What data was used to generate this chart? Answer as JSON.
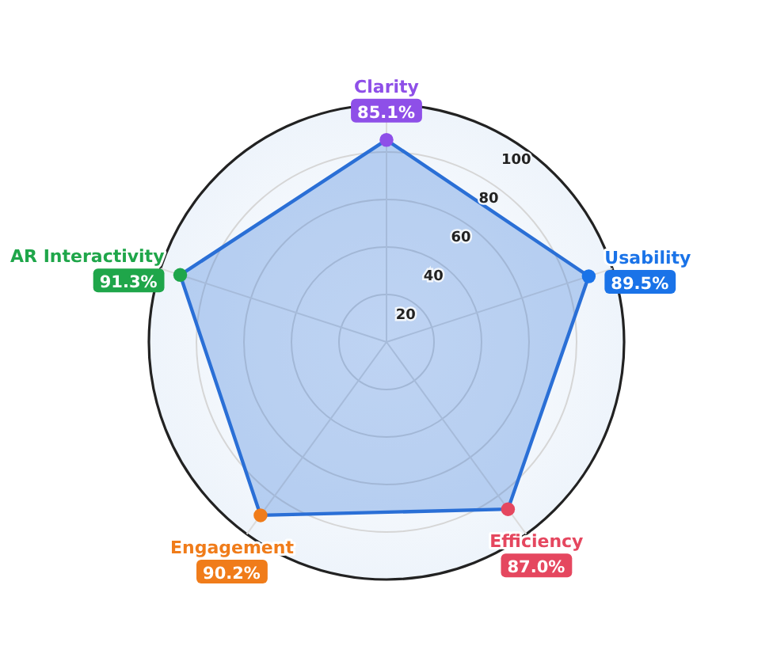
{
  "chart_data": {
    "type": "radar",
    "categories": [
      "Clarity",
      "Usability",
      "Efficiency",
      "Engagement",
      "AR Interactivity"
    ],
    "series": [
      {
        "color": "#2a6fd6",
        "values": [
          85.1,
          89.5,
          87.0,
          90.2,
          91.3
        ],
        "colors": [
          "#8e4fe8",
          "#1a73e8",
          "#e5475f",
          "#f07c1a",
          "#1fa64a"
        ],
        "value_labels": [
          "85.1%",
          "89.5%",
          "87.0%",
          "90.2%",
          "91.3%"
        ]
      }
    ],
    "ylim": [
      0,
      100
    ],
    "yticks": [
      20,
      40,
      60,
      80,
      100
    ],
    "grid": true,
    "marker": "circle"
  }
}
